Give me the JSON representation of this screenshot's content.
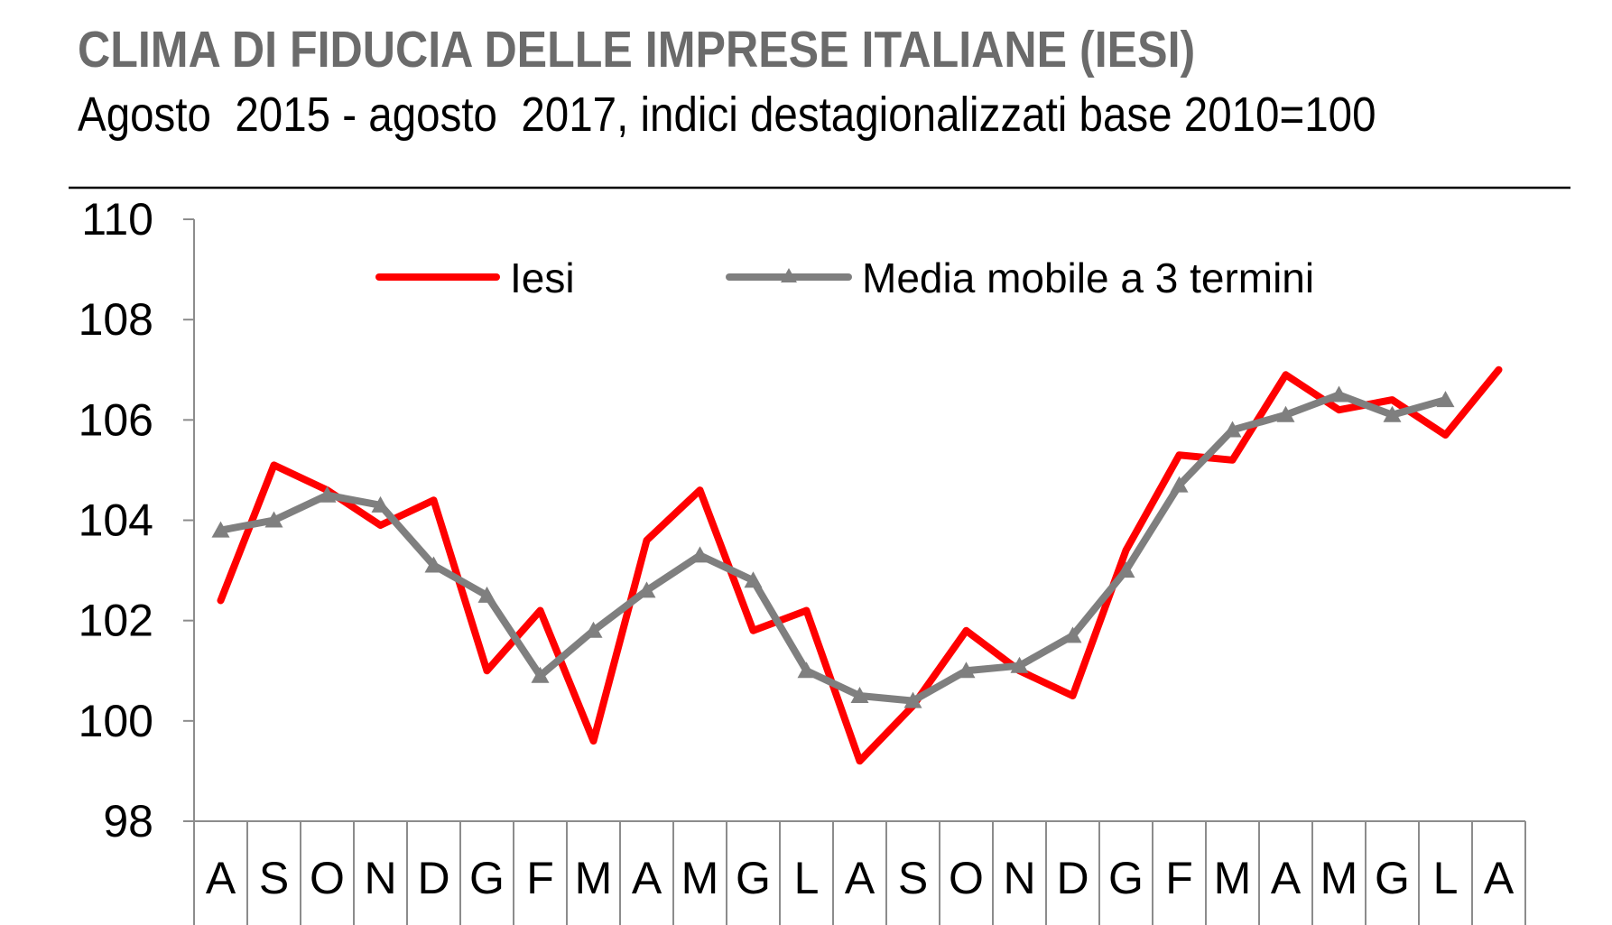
{
  "title": "CLIMA DI FIDUCIA DELLE IMPRESE ITALIANE (IESI)",
  "subtitle": "Agosto  2015 - agosto  2017, indici destagionalizzati base 2010=100",
  "colors": {
    "iesi": "#ff0000",
    "media": "#7f7f7f",
    "title": "#6b6b6b"
  },
  "chart_data": {
    "type": "line",
    "title": "",
    "xlabel": "",
    "ylabel": "",
    "ylim": [
      98,
      110
    ],
    "yticks": [
      98,
      100,
      102,
      104,
      106,
      108,
      110
    ],
    "categories": [
      "A",
      "S",
      "O",
      "N",
      "D",
      "G",
      "F",
      "M",
      "A",
      "M",
      "G",
      "L",
      "A",
      "S",
      "O",
      "N",
      "D",
      "G",
      "F",
      "M",
      "A",
      "M",
      "G",
      "L",
      "A"
    ],
    "grid": false,
    "legend_position": "top",
    "series": [
      {
        "name": "Iesi",
        "color": "#ff0000",
        "marker": "none",
        "values": [
          102.4,
          105.1,
          104.6,
          103.9,
          104.4,
          101.0,
          102.2,
          99.6,
          103.6,
          104.6,
          101.8,
          102.2,
          99.2,
          100.3,
          101.8,
          101.0,
          100.5,
          103.4,
          105.3,
          105.2,
          106.9,
          106.2,
          106.4,
          105.7,
          107.0
        ]
      },
      {
        "name": "Media mobile a 3 termini",
        "color": "#7f7f7f",
        "marker": "triangle",
        "values": [
          103.8,
          104.0,
          104.5,
          104.3,
          103.1,
          102.5,
          100.9,
          101.8,
          102.6,
          103.3,
          102.8,
          101.0,
          100.5,
          100.4,
          101.0,
          101.1,
          101.7,
          103.0,
          104.7,
          105.8,
          106.1,
          106.5,
          106.1,
          106.4,
          null
        ]
      }
    ]
  }
}
